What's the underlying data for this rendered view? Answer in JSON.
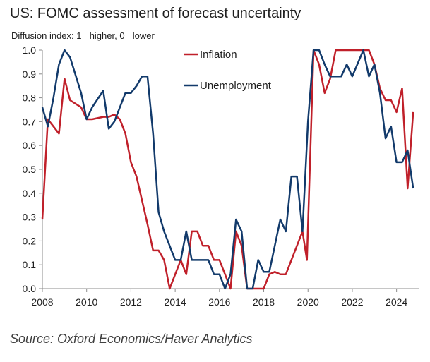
{
  "title": "US: FOMC assessment of forecast uncertainty",
  "subtitle": "Diffusion index: 1= higher, 0= lower",
  "source": "Source: Oxford Economics/Haver Analytics",
  "chart_data": {
    "type": "line",
    "xlim": [
      2008,
      2025
    ],
    "ylim": [
      0,
      1
    ],
    "x_ticks": [
      "2008",
      "2010",
      "2012",
      "2014",
      "2016",
      "2018",
      "2020",
      "2022",
      "2024"
    ],
    "y_ticks": [
      "0.0",
      "0.1",
      "0.2",
      "0.3",
      "0.4",
      "0.5",
      "0.6",
      "0.7",
      "0.8",
      "0.9",
      "1.0"
    ],
    "legend_position": "top-center",
    "grid": false,
    "series": [
      {
        "name": "Inflation",
        "color": "#c0202a",
        "points": [
          [
            2008.0,
            0.29
          ],
          [
            2008.25,
            0.71
          ],
          [
            2008.75,
            0.65
          ],
          [
            2009.0,
            0.88
          ],
          [
            2009.25,
            0.79
          ],
          [
            2009.75,
            0.76
          ],
          [
            2010.0,
            0.71
          ],
          [
            2010.25,
            0.71
          ],
          [
            2010.75,
            0.72
          ],
          [
            2011.0,
            0.72
          ],
          [
            2011.25,
            0.73
          ],
          [
            2011.5,
            0.71
          ],
          [
            2011.75,
            0.65
          ],
          [
            2012.0,
            0.53
          ],
          [
            2012.25,
            0.47
          ],
          [
            2012.75,
            0.27
          ],
          [
            2013.0,
            0.16
          ],
          [
            2013.25,
            0.16
          ],
          [
            2013.5,
            0.12
          ],
          [
            2013.75,
            0.0
          ],
          [
            2014.25,
            0.12
          ],
          [
            2014.5,
            0.06
          ],
          [
            2014.75,
            0.24
          ],
          [
            2015.0,
            0.24
          ],
          [
            2015.25,
            0.18
          ],
          [
            2015.5,
            0.18
          ],
          [
            2015.75,
            0.12
          ],
          [
            2016.0,
            0.12
          ],
          [
            2016.25,
            0.06
          ],
          [
            2016.5,
            0.0
          ],
          [
            2016.75,
            0.24
          ],
          [
            2017.0,
            0.18
          ],
          [
            2017.25,
            0.0
          ],
          [
            2017.75,
            0.0
          ],
          [
            2018.0,
            0.0
          ],
          [
            2018.25,
            0.06
          ],
          [
            2018.5,
            0.07
          ],
          [
            2018.75,
            0.06
          ],
          [
            2019.0,
            0.06
          ],
          [
            2019.25,
            0.12
          ],
          [
            2019.5,
            0.18
          ],
          [
            2019.75,
            0.24
          ],
          [
            2019.95,
            0.12
          ],
          [
            2020.25,
            1.0
          ],
          [
            2020.5,
            0.94
          ],
          [
            2020.75,
            0.82
          ],
          [
            2021.0,
            0.88
          ],
          [
            2021.25,
            1.0
          ],
          [
            2022.75,
            1.0
          ],
          [
            2023.0,
            0.94
          ],
          [
            2023.25,
            0.84
          ],
          [
            2023.5,
            0.79
          ],
          [
            2023.75,
            0.79
          ],
          [
            2024.0,
            0.74
          ],
          [
            2024.25,
            0.84
          ],
          [
            2024.5,
            0.42
          ],
          [
            2024.75,
            0.74
          ]
        ]
      },
      {
        "name": "Unemployment",
        "color": "#123a6b",
        "points": [
          [
            2008.0,
            0.76
          ],
          [
            2008.25,
            0.68
          ],
          [
            2008.5,
            0.8
          ],
          [
            2008.75,
            0.94
          ],
          [
            2009.0,
            1.0
          ],
          [
            2009.25,
            0.97
          ],
          [
            2009.75,
            0.82
          ],
          [
            2010.0,
            0.71
          ],
          [
            2010.25,
            0.76
          ],
          [
            2010.75,
            0.83
          ],
          [
            2011.0,
            0.67
          ],
          [
            2011.25,
            0.7
          ],
          [
            2011.75,
            0.82
          ],
          [
            2012.0,
            0.82
          ],
          [
            2012.25,
            0.85
          ],
          [
            2012.5,
            0.89
          ],
          [
            2012.75,
            0.89
          ],
          [
            2013.0,
            0.65
          ],
          [
            2013.25,
            0.32
          ],
          [
            2013.5,
            0.24
          ],
          [
            2014.0,
            0.12
          ],
          [
            2014.25,
            0.12
          ],
          [
            2014.5,
            0.24
          ],
          [
            2014.75,
            0.12
          ],
          [
            2015.5,
            0.12
          ],
          [
            2015.75,
            0.06
          ],
          [
            2016.0,
            0.06
          ],
          [
            2016.25,
            0.0
          ],
          [
            2016.5,
            0.06
          ],
          [
            2016.75,
            0.29
          ],
          [
            2017.0,
            0.24
          ],
          [
            2017.25,
            0.0
          ],
          [
            2017.5,
            0.0
          ],
          [
            2017.75,
            0.12
          ],
          [
            2018.0,
            0.07
          ],
          [
            2018.25,
            0.07
          ],
          [
            2018.5,
            0.18
          ],
          [
            2018.75,
            0.29
          ],
          [
            2019.0,
            0.24
          ],
          [
            2019.25,
            0.47
          ],
          [
            2019.5,
            0.47
          ],
          [
            2019.75,
            0.24
          ],
          [
            2020.0,
            0.7
          ],
          [
            2020.25,
            1.0
          ],
          [
            2020.5,
            1.0
          ],
          [
            2020.75,
            0.94
          ],
          [
            2021.0,
            0.89
          ],
          [
            2021.5,
            0.89
          ],
          [
            2021.75,
            0.94
          ],
          [
            2022.0,
            0.89
          ],
          [
            2022.5,
            1.0
          ],
          [
            2022.75,
            0.89
          ],
          [
            2023.0,
            0.94
          ],
          [
            2023.25,
            0.82
          ],
          [
            2023.5,
            0.63
          ],
          [
            2023.75,
            0.68
          ],
          [
            2024.0,
            0.53
          ],
          [
            2024.25,
            0.53
          ],
          [
            2024.5,
            0.58
          ],
          [
            2024.75,
            0.42
          ]
        ]
      }
    ]
  }
}
